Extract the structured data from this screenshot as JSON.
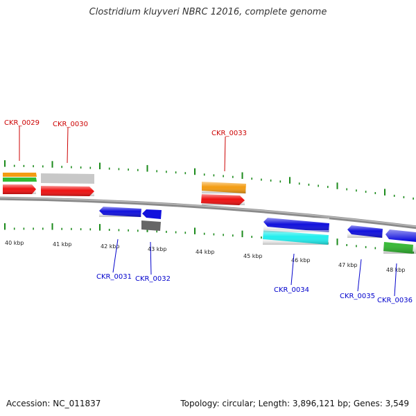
{
  "title": "Clostridium kluyveri NBRC 12016, complete genome",
  "footer": {
    "accession": "Accession: NC_011837",
    "summary": "Topology: circular; Length: 3,896,121 bp; Genes: 3,549"
  },
  "scale": {
    "unit": "kbp",
    "ticks": [
      "40 kbp",
      "41 kbp",
      "42 kbp",
      "43 kbp",
      "44 kbp",
      "45 kbp",
      "46 kbp",
      "47 kbp",
      "48 kbp"
    ]
  },
  "colors": {
    "backbone": "#8a8a8a",
    "top_label": "#cc0000",
    "bottom_label": "#0000cc",
    "tick": "#1a8a1a",
    "red": "#ee1111",
    "orange": "#f39c12",
    "green": "#33bb33",
    "lightgray": "#c8c8c8",
    "blue": "#1111dd",
    "darkgray": "#666666",
    "cyan": "#22eeee"
  },
  "labels": {
    "top": [
      "CKR_0029",
      "CKR_0030",
      "CKR_0033"
    ],
    "bottom": [
      "CKR_0031",
      "CKR_0032",
      "CKR_0034",
      "CKR_0035",
      "CKR_0036"
    ]
  },
  "features": [
    {
      "name": "CKR_0029",
      "track": "top-red",
      "color": "red",
      "strand": "+"
    },
    {
      "name": "CKR_0029",
      "track": "top-orange",
      "color": "orange",
      "strand": "+"
    },
    {
      "name": "CKR_0029",
      "track": "top-green",
      "color": "green",
      "strand": "+"
    },
    {
      "name": "CKR_0030",
      "track": "top-red",
      "color": "red",
      "strand": "+"
    },
    {
      "name": "CKR_0030",
      "track": "top-gray",
      "color": "lightgray",
      "strand": "+"
    },
    {
      "name": "CKR_0033",
      "track": "top-red",
      "color": "red",
      "strand": "+"
    },
    {
      "name": "CKR_0033",
      "track": "top-orange",
      "color": "orange",
      "strand": "+"
    },
    {
      "name": "CKR_0031",
      "track": "bottom-blue",
      "color": "blue",
      "strand": "-"
    },
    {
      "name": "CKR_0032",
      "track": "bottom-blue",
      "color": "blue",
      "strand": "-"
    },
    {
      "name": "CKR_0032",
      "track": "bottom-gray",
      "color": "darkgray",
      "strand": "-"
    },
    {
      "name": "CKR_0034",
      "track": "bottom-blue",
      "color": "blue",
      "strand": "-"
    },
    {
      "name": "CKR_0034",
      "track": "bottom-cyan",
      "color": "cyan",
      "strand": "-"
    },
    {
      "name": "CKR_0035",
      "track": "bottom-blue",
      "color": "blue",
      "strand": "-"
    },
    {
      "name": "CKR_0036",
      "track": "bottom-blue",
      "color": "blue",
      "strand": "-"
    },
    {
      "name": "CKR_0036",
      "track": "bottom-green",
      "color": "green",
      "strand": "-"
    }
  ]
}
